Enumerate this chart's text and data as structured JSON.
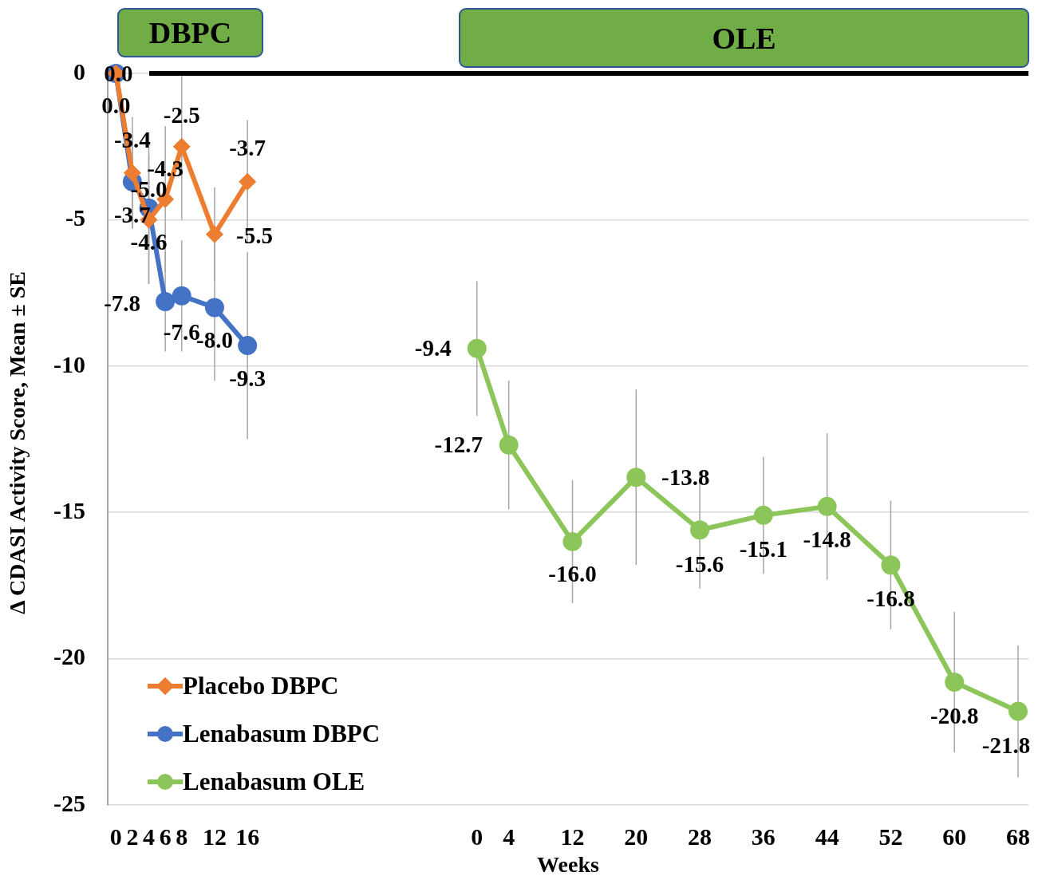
{
  "chart_data": {
    "type": "line",
    "xlabel": "Weeks",
    "ylabel": "Δ CDASI Activity Score, Mean ± SE",
    "annotations": [
      "DBPC",
      "OLE"
    ],
    "xlim": [
      -1,
      111
    ],
    "xticks": [
      0,
      2,
      4,
      6,
      8,
      12,
      16
    ],
    "x2lim": [
      -46.4,
      69.3
    ],
    "x2ticks": [
      0,
      4,
      12,
      20,
      28,
      36,
      44,
      52,
      60,
      68
    ],
    "ylim": [
      -25,
      0
    ],
    "yticks": [
      0,
      -5,
      -10,
      -15,
      -20,
      -25
    ],
    "grid": "y",
    "legend": "bottom left",
    "ref_lines": [
      {
        "axis": "y",
        "value": 0,
        "color": "#000000"
      }
    ],
    "series": [
      {
        "name": "Placebo DBPC",
        "color": "#ed7d31",
        "marker": "diamond",
        "x": [
          0,
          2,
          4,
          6,
          8,
          12,
          16
        ],
        "values": [
          0,
          -3.4,
          -5.0,
          -4.3,
          -2.5,
          -5.5,
          -3.7
        ],
        "errors": [
          null,
          1.9,
          2.2,
          2.5,
          2.5,
          1.6,
          2.1
        ],
        "value_labels": [
          "0.0",
          "-3.4",
          "-5.0",
          "-4.3",
          "-2.5",
          "-5.5",
          "-3.7"
        ]
      },
      {
        "name": "Lenabasum DBPC",
        "color": "#4472c4",
        "marker": "circle",
        "x": [
          0,
          2,
          4,
          6,
          8,
          12,
          16
        ],
        "values": [
          0,
          -3.7,
          -4.6,
          -7.8,
          -7.6,
          -8.0,
          -9.3
        ],
        "errors": [
          null,
          1.6,
          2.6,
          1.7,
          1.9,
          2.5,
          3.2
        ],
        "value_labels": [
          "0.0",
          "-3.7",
          "-4.6",
          "-7.8",
          "-7.6",
          "-8.0",
          "-9.3"
        ]
      },
      {
        "name": "Lenabasum OLE",
        "color": "#8cc65a",
        "marker": "circle",
        "axis": "x2",
        "x": [
          0,
          4,
          12,
          20,
          28,
          36,
          44,
          52,
          60,
          68
        ],
        "values": [
          -9.4,
          -12.7,
          -16.0,
          -13.8,
          -15.6,
          -15.1,
          -14.8,
          -16.8,
          -20.8,
          -21.8
        ],
        "errors": [
          2.3,
          2.2,
          2.1,
          3.0,
          2.0,
          2.0,
          2.5,
          2.2,
          2.4,
          2.25
        ],
        "value_labels": [
          "-9.4",
          "-12.7",
          "-16.0",
          "-13.8",
          "-15.6",
          "-15.1",
          "-14.8",
          "-16.8",
          "-20.8",
          "-21.8"
        ]
      }
    ]
  }
}
